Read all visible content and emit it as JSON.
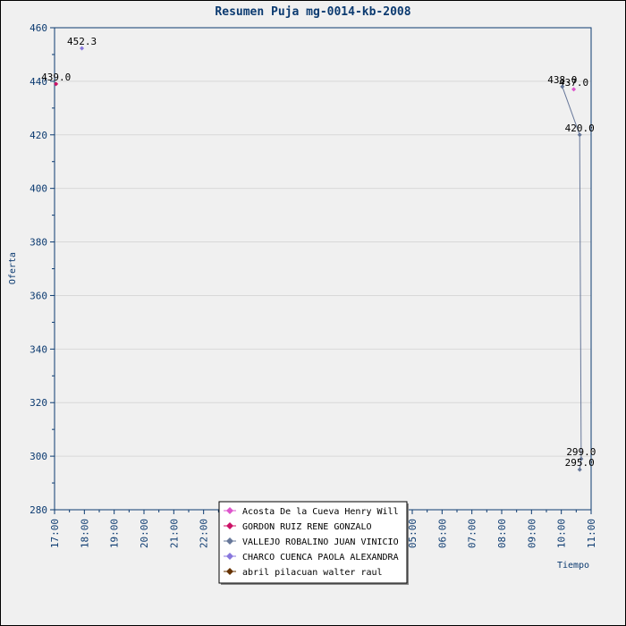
{
  "chart_data": {
    "type": "line",
    "title": "Resumen Puja mg-0014-kb-2008",
    "xlabel": "Tiempo",
    "ylabel": "Oferta",
    "ylim": [
      280,
      460
    ],
    "y_ticks": [
      "280",
      "300",
      "320",
      "340",
      "360",
      "380",
      "400",
      "420",
      "440",
      "460"
    ],
    "x_ticks": [
      "17:00",
      "18:00",
      "19:00",
      "20:00",
      "21:00",
      "22:00",
      "23:00",
      "00:00",
      "01:00",
      "02:00",
      "03:00",
      "04:00",
      "05:00",
      "06:00",
      "07:00",
      "08:00",
      "09:00",
      "10:00",
      "11:00"
    ],
    "grid": true,
    "legend_position": "bottom-center",
    "series": [
      {
        "name": "Acosta De la Cueva Henry Will",
        "color": "#dd55cc",
        "points": [
          {
            "t": "10:25",
            "y": 437.0,
            "label": "437.0"
          }
        ]
      },
      {
        "name": "GORDON RUIZ RENE GONZALO",
        "color": "#cc1166",
        "points": [
          {
            "t": "17:03",
            "y": 439.0,
            "label": "439.0"
          }
        ]
      },
      {
        "name": "VALLEJO ROBALINO JUAN VINICIO",
        "color": "#667799",
        "connected": true,
        "points": [
          {
            "t": "10:02",
            "y": 438.0,
            "label": "438.0"
          },
          {
            "t": "10:37",
            "y": 420.0,
            "label": "420.0"
          },
          {
            "t": "10:40",
            "y": 299.0,
            "label": "299.0"
          },
          {
            "t": "10:37",
            "y": 295.0,
            "label": "295.0"
          }
        ]
      },
      {
        "name": "CHARCO CUENCA PAOLA ALEXANDRA",
        "color": "#8877dd",
        "points": [
          {
            "t": "17:55",
            "y": 452.3,
            "label": "452.3"
          }
        ]
      },
      {
        "name": "abril pilacuan walter raul",
        "color": "#663300",
        "points": []
      }
    ]
  }
}
